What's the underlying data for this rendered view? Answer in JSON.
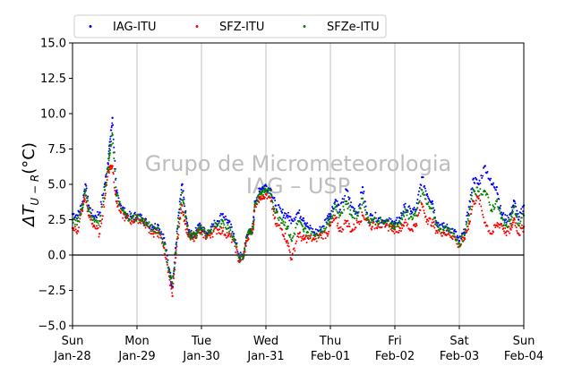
{
  "chart_data": {
    "type": "scatter",
    "title": "",
    "ylabel": "ΔT_U−R (°C)",
    "ylabel_parts": {
      "delta": "ΔT",
      "sub": "U − R",
      "unit": "(°C)"
    },
    "ylim": [
      -5.0,
      15.0
    ],
    "yticks": [
      "−5.0",
      "−2.5",
      "0.0",
      "2.5",
      "5.0",
      "7.5",
      "10.0",
      "12.5",
      "15.0"
    ],
    "ytick_values": [
      -5.0,
      -2.5,
      0.0,
      2.5,
      5.0,
      7.5,
      10.0,
      12.5,
      15.0
    ],
    "xlim": [
      0,
      7
    ],
    "xticks": [
      {
        "day": "Sun",
        "date": "Jan-28"
      },
      {
        "day": "Mon",
        "date": "Jan-29"
      },
      {
        "day": "Tue",
        "date": "Jan-30"
      },
      {
        "day": "Wed",
        "date": "Jan-31"
      },
      {
        "day": "Thu",
        "date": "Feb-01"
      },
      {
        "day": "Fri",
        "date": "Feb-02"
      },
      {
        "day": "Sat",
        "date": "Feb-03"
      },
      {
        "day": "Sun",
        "date": "Feb-04"
      }
    ],
    "grid": "vertical",
    "zero_line": 0.0,
    "legend_position": "top",
    "watermark": [
      "Grupo de Micrometeorologia",
      "IAG – USP"
    ],
    "series": [
      {
        "name": "IAG-ITU",
        "color": "#0000ff",
        "x": [
          0.0,
          0.08,
          0.15,
          0.2,
          0.25,
          0.33,
          0.42,
          0.5,
          0.55,
          0.58,
          0.62,
          0.68,
          0.75,
          0.83,
          0.92,
          1.0,
          1.08,
          1.15,
          1.25,
          1.33,
          1.42,
          1.5,
          1.55,
          1.6,
          1.65,
          1.7,
          1.75,
          1.8,
          1.85,
          1.9,
          1.95,
          2.0,
          2.08,
          2.15,
          2.25,
          2.33,
          2.42,
          2.5,
          2.58,
          2.65,
          2.7,
          2.75,
          2.8,
          2.83,
          2.9,
          2.95,
          3.0,
          3.08,
          3.15,
          3.25,
          3.33,
          3.4,
          3.5,
          3.58,
          3.65,
          3.75,
          3.85,
          3.95,
          4.0,
          4.08,
          4.15,
          4.25,
          4.33,
          4.42,
          4.5,
          4.58,
          4.65,
          4.75,
          4.85,
          4.95,
          5.0,
          5.08,
          5.15,
          5.25,
          5.33,
          5.42,
          5.5,
          5.58,
          5.65,
          5.75,
          5.83,
          5.92,
          6.0,
          6.08,
          6.15,
          6.22,
          6.3,
          6.4,
          6.5,
          6.58,
          6.65,
          6.72,
          6.8,
          6.85,
          6.92,
          7.0
        ],
        "y": [
          2.9,
          2.8,
          3.6,
          5.0,
          3.5,
          2.7,
          3.0,
          5.0,
          6.5,
          8.0,
          9.7,
          4.5,
          3.5,
          2.9,
          2.7,
          2.8,
          2.6,
          2.3,
          2.0,
          2.1,
          1.2,
          -1.0,
          -2.3,
          0.5,
          3.0,
          5.0,
          3.0,
          1.6,
          1.4,
          1.5,
          2.1,
          1.9,
          1.5,
          2.0,
          2.4,
          2.9,
          2.3,
          1.5,
          0.0,
          -0.2,
          1.3,
          1.7,
          2.0,
          3.8,
          4.5,
          4.8,
          4.9,
          4.6,
          3.5,
          3.0,
          2.8,
          2.5,
          3.0,
          2.6,
          2.0,
          1.6,
          1.8,
          2.6,
          2.9,
          3.9,
          3.2,
          4.6,
          3.4,
          3.0,
          4.8,
          2.5,
          2.8,
          2.6,
          2.4,
          2.3,
          2.2,
          2.6,
          3.4,
          3.1,
          3.2,
          5.5,
          4.3,
          3.8,
          2.3,
          2.0,
          1.9,
          1.7,
          1.0,
          1.6,
          3.4,
          5.4,
          5.0,
          6.3,
          5.0,
          4.8,
          3.0,
          2.5,
          2.9,
          3.8,
          2.5,
          3.5
        ]
      },
      {
        "name": "SFZ-ITU",
        "color": "#ff0000",
        "x": [
          0.0,
          0.08,
          0.15,
          0.2,
          0.25,
          0.33,
          0.42,
          0.5,
          0.55,
          0.58,
          0.62,
          0.68,
          0.75,
          0.83,
          0.92,
          1.0,
          1.08,
          1.15,
          1.25,
          1.33,
          1.42,
          1.5,
          1.55,
          1.6,
          1.65,
          1.7,
          1.75,
          1.8,
          1.85,
          1.9,
          1.95,
          2.0,
          2.08,
          2.15,
          2.25,
          2.33,
          2.42,
          2.5,
          2.58,
          2.65,
          2.7,
          2.75,
          2.8,
          2.83,
          2.9,
          2.95,
          3.0,
          3.08,
          3.15,
          3.25,
          3.33,
          3.4,
          3.5,
          3.58,
          3.65,
          3.75,
          3.85,
          3.95,
          4.0,
          4.08,
          4.15,
          4.25,
          4.33,
          4.42,
          4.5,
          4.58,
          4.65,
          4.75,
          4.85,
          4.95,
          5.0,
          5.08,
          5.15,
          5.25,
          5.33,
          5.42,
          5.5,
          5.58,
          5.65,
          5.75,
          5.83,
          5.92,
          6.0,
          6.08,
          6.15,
          6.22,
          6.3,
          6.4,
          6.5,
          6.58,
          6.65,
          6.72,
          6.8,
          6.85,
          6.92,
          7.0
        ],
        "y": [
          1.9,
          1.7,
          3.2,
          4.2,
          2.8,
          2.1,
          1.5,
          4.0,
          5.9,
          6.2,
          6.3,
          3.8,
          3.0,
          2.6,
          2.4,
          2.6,
          2.4,
          2.1,
          1.5,
          1.6,
          0.5,
          -1.5,
          -2.9,
          -0.2,
          2.0,
          3.5,
          2.2,
          1.3,
          1.2,
          1.3,
          1.7,
          1.6,
          1.3,
          1.5,
          1.8,
          1.7,
          1.4,
          1.0,
          -0.4,
          -0.1,
          1.0,
          1.5,
          1.8,
          3.5,
          4.1,
          4.2,
          4.3,
          3.8,
          2.2,
          1.8,
          1.0,
          -0.3,
          1.5,
          1.1,
          1.2,
          1.1,
          1.4,
          1.5,
          2.1,
          2.6,
          1.7,
          2.4,
          1.7,
          2.3,
          2.8,
          2.5,
          2.0,
          2.2,
          2.0,
          2.0,
          1.8,
          1.9,
          2.3,
          1.8,
          2.2,
          3.6,
          2.5,
          2.3,
          1.7,
          1.6,
          1.5,
          1.3,
          0.6,
          1.2,
          2.2,
          3.8,
          4.0,
          2.3,
          1.5,
          2.1,
          2.2,
          1.6,
          1.8,
          2.6,
          1.5,
          2.0
        ]
      },
      {
        "name": "SFZe-ITU",
        "color": "#008000",
        "x": [
          0.0,
          0.08,
          0.15,
          0.2,
          0.25,
          0.33,
          0.42,
          0.5,
          0.55,
          0.58,
          0.62,
          0.68,
          0.75,
          0.83,
          0.92,
          1.0,
          1.08,
          1.15,
          1.25,
          1.33,
          1.42,
          1.5,
          1.55,
          1.6,
          1.65,
          1.7,
          1.75,
          1.8,
          1.85,
          1.9,
          1.95,
          2.0,
          2.08,
          2.15,
          2.25,
          2.33,
          2.42,
          2.5,
          2.58,
          2.65,
          2.7,
          2.75,
          2.8,
          2.83,
          2.9,
          2.95,
          3.0,
          3.08,
          3.15,
          3.25,
          3.33,
          3.4,
          3.5,
          3.58,
          3.65,
          3.75,
          3.85,
          3.95,
          4.0,
          4.08,
          4.15,
          4.25,
          4.33,
          4.42,
          4.5,
          4.58,
          4.65,
          4.75,
          4.85,
          4.95,
          5.0,
          5.08,
          5.15,
          5.25,
          5.33,
          5.42,
          5.5,
          5.58,
          5.65,
          5.75,
          5.83,
          5.92,
          6.0,
          6.08,
          6.15,
          6.22,
          6.3,
          6.4,
          6.5,
          6.58,
          6.65,
          6.72,
          6.8,
          6.85,
          6.92,
          7.0
        ],
        "y": [
          2.5,
          2.4,
          3.3,
          4.6,
          3.2,
          2.5,
          2.4,
          4.6,
          6.2,
          7.2,
          8.5,
          4.2,
          3.3,
          2.8,
          2.6,
          2.7,
          2.5,
          2.2,
          1.8,
          1.9,
          0.8,
          -1.2,
          -2.0,
          0.2,
          2.6,
          4.4,
          2.7,
          1.5,
          1.3,
          1.4,
          1.9,
          1.8,
          1.4,
          1.8,
          2.1,
          2.4,
          1.9,
          1.3,
          -0.2,
          -0.2,
          1.2,
          1.6,
          1.9,
          3.7,
          4.3,
          4.5,
          4.6,
          4.3,
          3.0,
          2.5,
          2.0,
          1.0,
          2.4,
          1.8,
          1.6,
          1.4,
          1.6,
          2.2,
          2.6,
          3.4,
          2.8,
          3.8,
          2.8,
          2.8,
          4.0,
          2.5,
          2.5,
          2.4,
          2.3,
          2.2,
          2.0,
          2.3,
          3.0,
          2.7,
          2.8,
          4.6,
          3.6,
          3.3,
          2.1,
          1.8,
          1.7,
          1.5,
          0.8,
          1.4,
          2.8,
          4.6,
          4.5,
          4.5,
          3.2,
          3.8,
          2.6,
          2.1,
          2.5,
          3.4,
          2.1,
          2.8
        ]
      }
    ]
  }
}
